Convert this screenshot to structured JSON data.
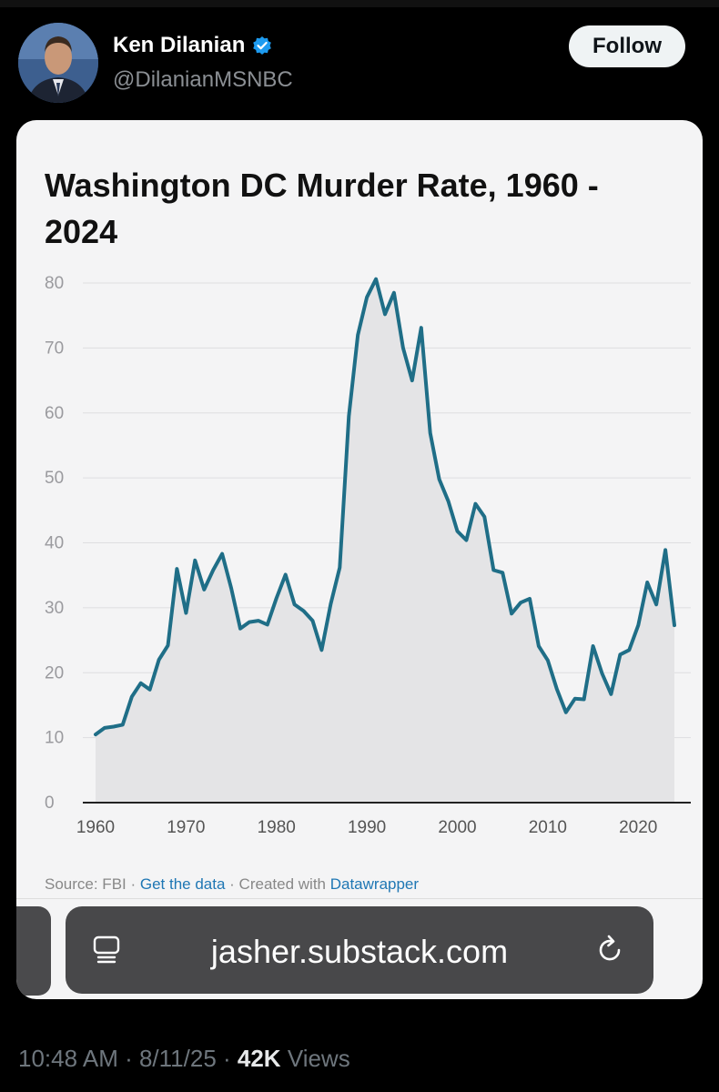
{
  "post": {
    "author_name": "Ken Dilanian",
    "handle": "@DilanianMSNBC",
    "follow_label": "Follow",
    "timestamp": "10:48 AM · 8/11/25 · ",
    "views_count": "42K",
    "views_label": " Views"
  },
  "icons": {
    "verified": "verified-badge-icon",
    "avatar": "profile-photo",
    "tabs": "tabs-icon",
    "reload": "reload-icon"
  },
  "colors": {
    "line": "#1f6e87",
    "area": "#e4e4e6",
    "link": "#1f77b4",
    "verified": "#1d9bf0"
  },
  "card": {
    "source_prefix": "Source: FBI · ",
    "get_data": "Get the data",
    "created_with": " · Created with ",
    "datawrapper": "Datawrapper"
  },
  "browser": {
    "url": "jasher.substack.com"
  },
  "chart_data": {
    "type": "area",
    "title": "Washington DC Murder Rate, 1960 - 2024",
    "xlabel": "",
    "ylabel": "",
    "xlim": [
      1960,
      2024
    ],
    "ylim": [
      0,
      80
    ],
    "yticks": [
      0,
      10,
      20,
      30,
      40,
      50,
      60,
      70,
      80
    ],
    "xticks": [
      1960,
      1970,
      1980,
      1990,
      2000,
      2010,
      2020
    ],
    "grid": true,
    "x": [
      1960,
      1961,
      1962,
      1963,
      1964,
      1965,
      1966,
      1967,
      1968,
      1969,
      1970,
      1971,
      1972,
      1973,
      1974,
      1975,
      1976,
      1977,
      1978,
      1979,
      1980,
      1981,
      1982,
      1983,
      1984,
      1985,
      1986,
      1987,
      1988,
      1989,
      1990,
      1991,
      1992,
      1993,
      1994,
      1995,
      1996,
      1997,
      1998,
      1999,
      2000,
      2001,
      2002,
      2003,
      2004,
      2005,
      2006,
      2007,
      2008,
      2009,
      2010,
      2011,
      2012,
      2013,
      2014,
      2015,
      2016,
      2017,
      2018,
      2019,
      2020,
      2021,
      2022,
      2023,
      2024
    ],
    "y": [
      10.5,
      11.5,
      11.7,
      12.0,
      16.3,
      18.4,
      17.4,
      22.0,
      24.2,
      36.0,
      29.2,
      37.3,
      32.8,
      35.8,
      38.3,
      33.0,
      26.8,
      27.8,
      28.0,
      27.4,
      31.5,
      35.1,
      30.5,
      29.5,
      28.0,
      23.5,
      30.6,
      36.2,
      59.5,
      72.0,
      77.8,
      80.6,
      75.2,
      78.5,
      70.0,
      65.0,
      73.1,
      56.9,
      49.8,
      46.4,
      41.8,
      40.4,
      46.0,
      44.0,
      35.8,
      35.4,
      29.1,
      30.8,
      31.4,
      24.1,
      21.9,
      17.5,
      13.9,
      16.0,
      15.9,
      24.1,
      19.9,
      16.7,
      22.8,
      23.5,
      27.3,
      33.9,
      30.5,
      38.9,
      27.3
    ]
  }
}
